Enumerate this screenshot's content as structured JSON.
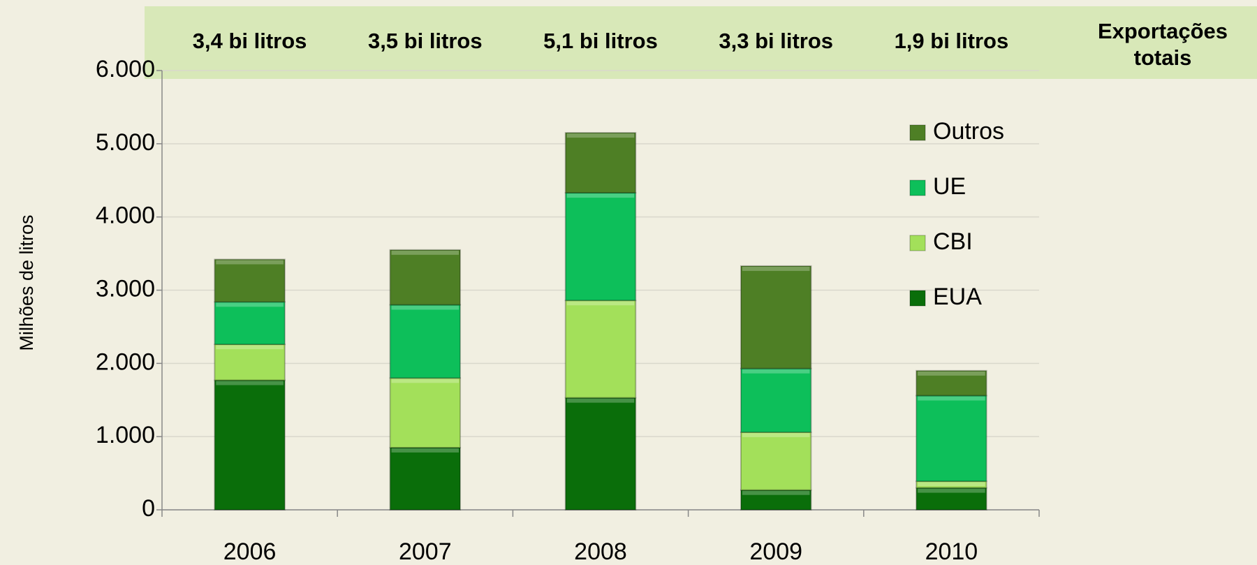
{
  "chart_data": {
    "type": "stacked_bar",
    "categories": [
      "2006",
      "2007",
      "2008",
      "2009",
      "2010"
    ],
    "series": [
      {
        "name": "EUA",
        "color": "#0a6e0a",
        "values": [
          1770,
          850,
          1530,
          270,
          300
        ]
      },
      {
        "name": "CBI",
        "color": "#a3e05a",
        "values": [
          490,
          950,
          1330,
          790,
          90
        ]
      },
      {
        "name": "UE",
        "color": "#0dbf5a",
        "values": [
          580,
          1000,
          1470,
          870,
          1170
        ]
      },
      {
        "name": "Outros",
        "color": "#4e7f25",
        "values": [
          580,
          750,
          820,
          1400,
          340
        ]
      }
    ],
    "total_labels": [
      "3,4 bi litros",
      "3,5 bi litros",
      "5,1 bi litros",
      "3,3 bi litros",
      "1,9 bi litros"
    ],
    "total_header": "Exportações totais",
    "ylabel": "Milhões de litros",
    "ylim": [
      0,
      6000
    ],
    "yticks": [
      0,
      {
        "value": 1000,
        "label": "1.000"
      },
      {
        "value": 2000,
        "label": "2.000"
      },
      {
        "value": 3000,
        "label": "3.000"
      },
      {
        "value": 4000,
        "label": "4.000"
      },
      {
        "value": 5000,
        "label": "5.000"
      },
      {
        "value": 6000,
        "label": "6.000"
      }
    ],
    "grid": true,
    "legend": "right"
  }
}
